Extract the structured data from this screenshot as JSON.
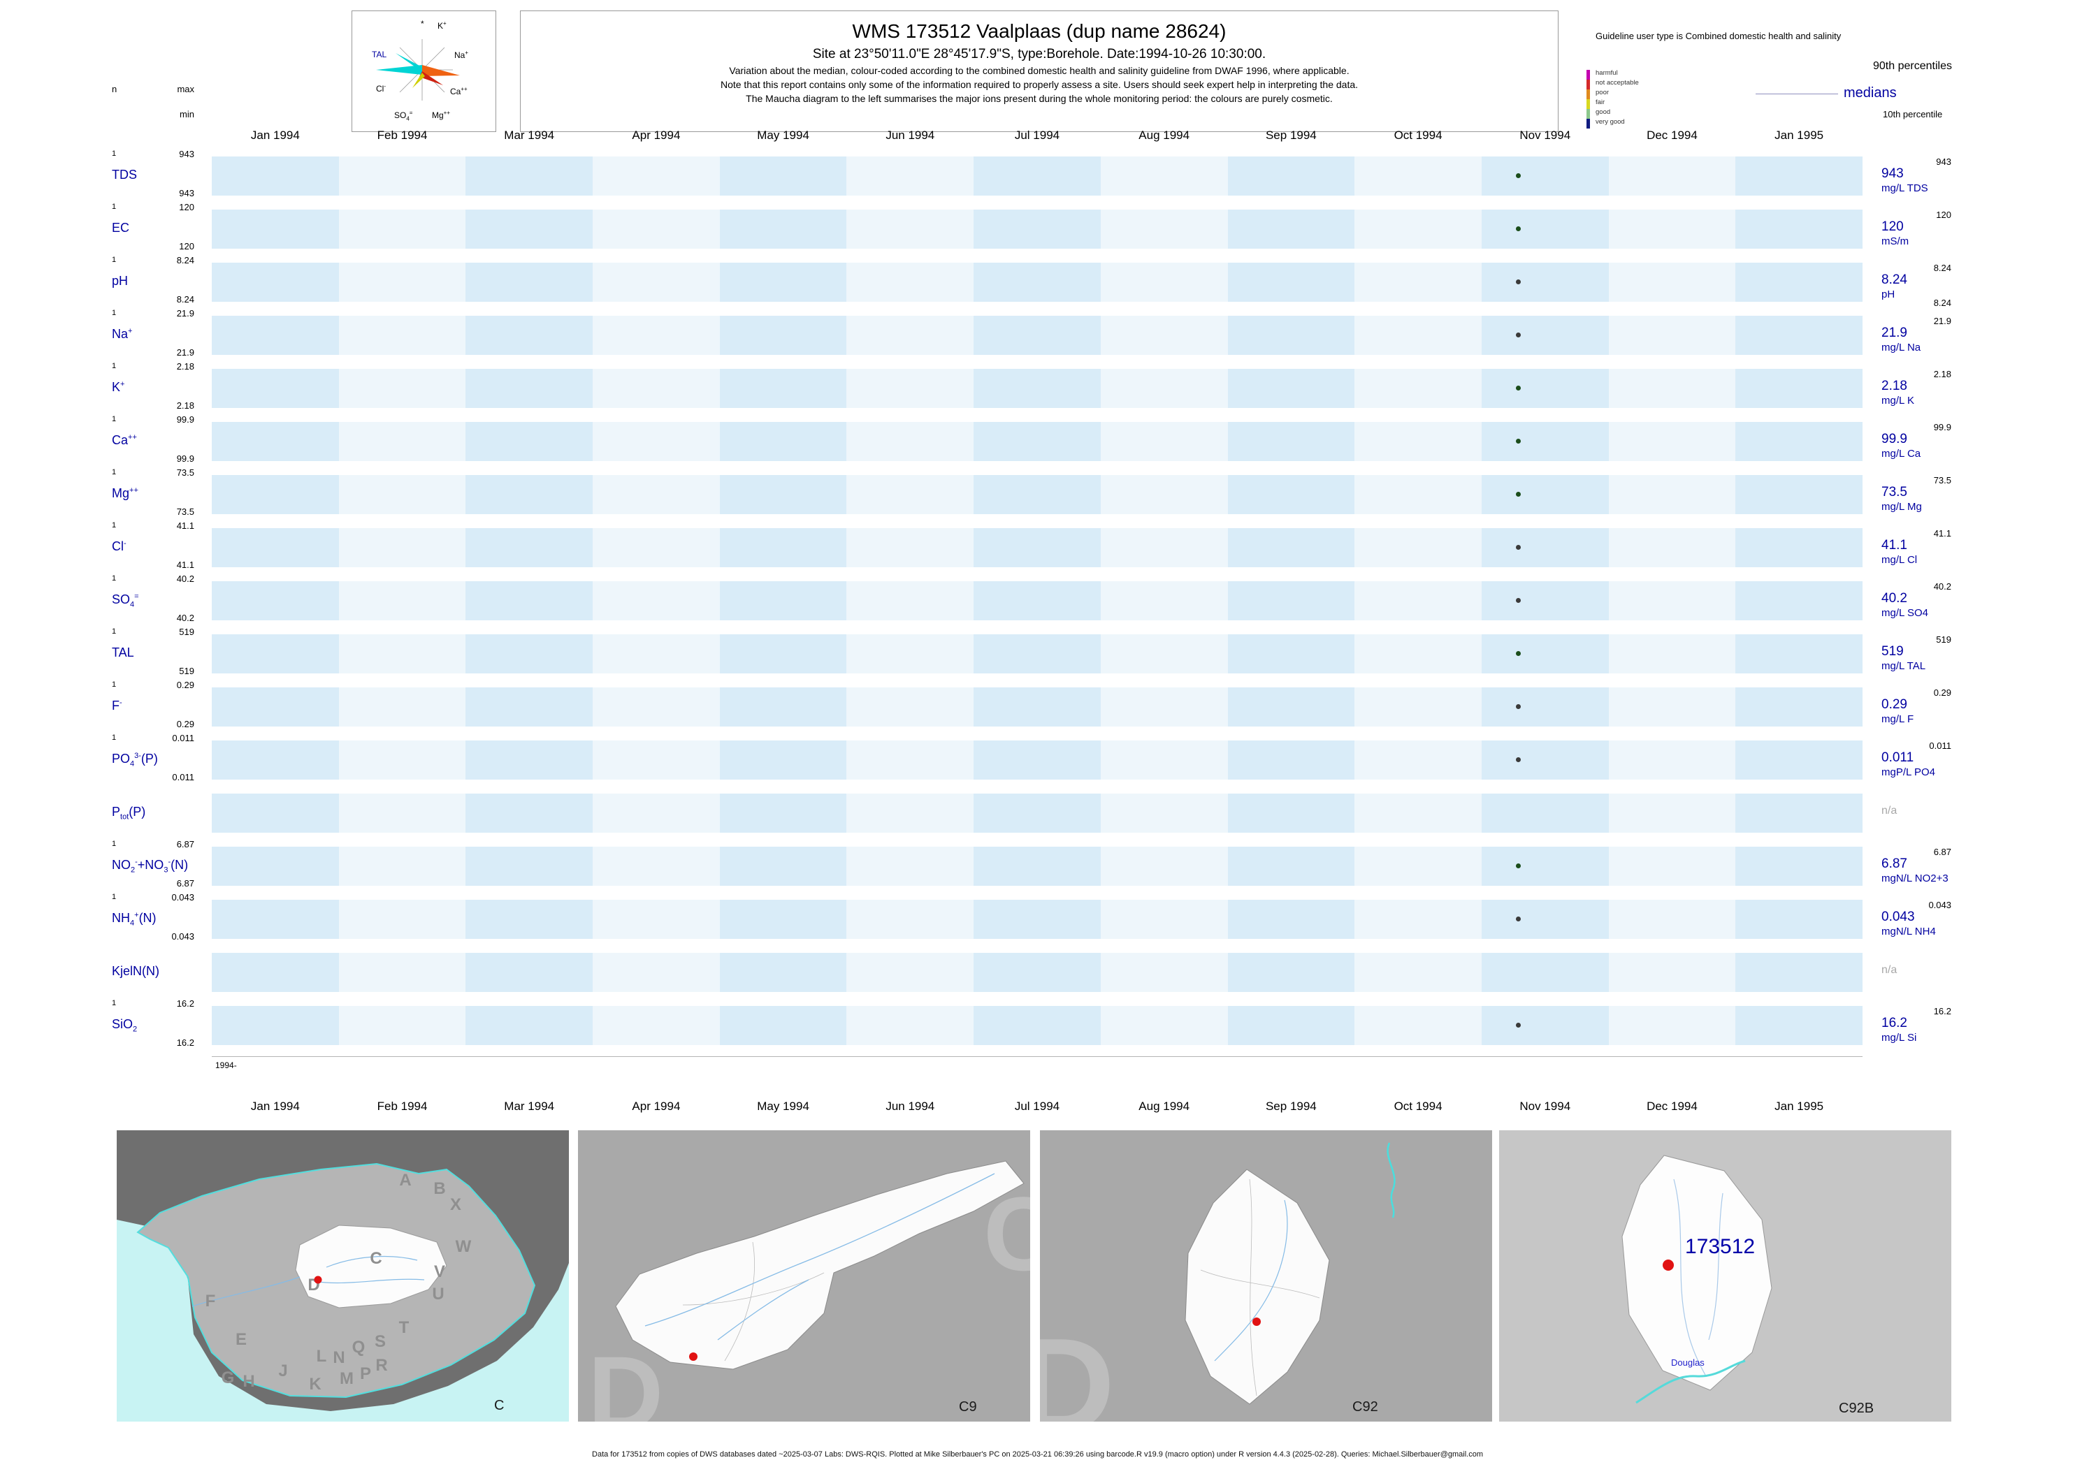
{
  "header": {
    "title": "WMS 173512  Vaalplaas (dup name 28624)",
    "subtitle": "Site at 23°50'11.0\"E 28°45'17.9\"S, type:Borehole. Date:1994-10-26 10:30:00.",
    "note1": "Variation about the median,  colour-coded according to the combined domestic health and salinity guideline from DWAF 1996, where applicable.",
    "note2": "Note that this report contains only some of the information required to properly assess a site. Users should seek expert help in interpreting the data.",
    "note3": "The Maucha diagram to the left summarises the major ions present during the whole monitoring period: the colours are purely cosmetic."
  },
  "maucha": {
    "star": "*",
    "k": "K<sup>+</sup>",
    "na": "Na<sup>+</sup>",
    "tal": "TAL",
    "cl": "Cl<sup>-</sup>",
    "ca": "Ca<sup>++</sup>",
    "so4": "SO<sub>4</sub><sup>=</sup>",
    "mg": "Mg<sup>++</sup>"
  },
  "legend": {
    "title": "Guideline user type is Combined domestic health and salinity",
    "scale": [
      {
        "label": "harmful",
        "color": "#c400b0"
      },
      {
        "label": "not acceptable",
        "color": "#d42a2a"
      },
      {
        "label": "poor",
        "color": "#e08a1e"
      },
      {
        "label": "fair",
        "color": "#d8d820"
      },
      {
        "label": "good",
        "color": "#8cc88c"
      },
      {
        "label": "very good",
        "color": "#101c80"
      }
    ],
    "p90_label": "90th percentiles",
    "median_label": "medians",
    "p10_label": "10th percentile"
  },
  "chart": {
    "col_n": "n",
    "col_max": "max",
    "col_min": "min",
    "origin_label": "1994-",
    "na_label": "n/a",
    "months": [
      "Jan 1994",
      "Feb 1994",
      "Mar 1994",
      "Apr 1994",
      "May 1994",
      "Jun 1994",
      "Jul 1994",
      "Aug 1994",
      "Sep 1994",
      "Oct 1994",
      "Nov 1994",
      "Dec 1994",
      "Jan 1995"
    ],
    "rows": [
      {
        "id": "tds",
        "label_html": "TDS",
        "n": "1",
        "max": "943",
        "min": "943",
        "p90": "943",
        "median": "943",
        "unit": "mg/L TDS",
        "dot_color": "#1b4d1b"
      },
      {
        "id": "ec",
        "label_html": "EC",
        "n": "1",
        "max": "120",
        "min": "120",
        "p90": "120",
        "median": "120",
        "unit": "mS/m",
        "dot_color": "#1b4d1b"
      },
      {
        "id": "ph",
        "label_html": "pH",
        "n": "1",
        "max": "8.24",
        "min": "8.24",
        "p90": "8.24",
        "median": "8.24",
        "p10": "8.24",
        "unit": "pH",
        "dot_color": "#3a3a3a"
      },
      {
        "id": "na",
        "label_html": "Na<sup>+</sup>",
        "n": "1",
        "max": "21.9",
        "min": "21.9",
        "p90": "21.9",
        "median": "21.9",
        "unit": "mg/L Na",
        "dot_color": "#3a3a3a"
      },
      {
        "id": "k",
        "label_html": "K<sup>+</sup>",
        "n": "1",
        "max": "2.18",
        "min": "2.18",
        "p90": "2.18",
        "median": "2.18",
        "unit": "mg/L K",
        "dot_color": "#1b4d1b"
      },
      {
        "id": "ca",
        "label_html": "Ca<sup>++</sup>",
        "n": "1",
        "max": "99.9",
        "min": "99.9",
        "p90": "99.9",
        "median": "99.9",
        "unit": "mg/L Ca",
        "dot_color": "#1b4d1b"
      },
      {
        "id": "mg",
        "label_html": "Mg<sup>++</sup>",
        "n": "1",
        "max": "73.5",
        "min": "73.5",
        "p90": "73.5",
        "median": "73.5",
        "unit": "mg/L Mg",
        "dot_color": "#1b4d1b"
      },
      {
        "id": "cl",
        "label_html": "Cl<sup>-</sup>",
        "n": "1",
        "max": "41.1",
        "min": "41.1",
        "p90": "41.1",
        "median": "41.1",
        "unit": "mg/L Cl",
        "dot_color": "#3a3a3a"
      },
      {
        "id": "so4",
        "label_html": "SO<sub>4</sub><sup>=</sup>",
        "n": "1",
        "max": "40.2",
        "min": "40.2",
        "p90": "40.2",
        "median": "40.2",
        "unit": "mg/L SO4",
        "dot_color": "#3a3a3a"
      },
      {
        "id": "tal",
        "label_html": "TAL",
        "n": "1",
        "max": "519",
        "min": "519",
        "p90": "519",
        "median": "519",
        "unit": "mg/L TAL",
        "dot_color": "#1b4d1b"
      },
      {
        "id": "f",
        "label_html": "F<sup>-</sup>",
        "n": "1",
        "max": "0.29",
        "min": "0.29",
        "p90": "0.29",
        "median": "0.29",
        "unit": "mg/L F",
        "dot_color": "#3a3a3a"
      },
      {
        "id": "po4",
        "label_html": "PO<sub>4</sub><sup>3-</sup>(P)",
        "n": "1",
        "max": "0.011",
        "min": "0.011",
        "p90": "0.011",
        "median": "0.011",
        "unit": "mgP/L PO4",
        "dot_color": "#3a3a3a"
      },
      {
        "id": "ptot",
        "label_html": "P<sub>tot</sub>(P)",
        "na": true
      },
      {
        "id": "no2no3",
        "label_html": "NO<sub>2</sub><sup>-</sup>+NO<sub>3</sub><sup>-</sup>(N)",
        "n": "1",
        "max": "6.87",
        "min": "6.87",
        "p90": "6.87",
        "median": "6.87",
        "unit": "mgN/L NO2+3",
        "dot_color": "#1b4d1b"
      },
      {
        "id": "nh4",
        "label_html": "NH<sub>4</sub><sup>+</sup>(N)",
        "n": "1",
        "max": "0.043",
        "min": "0.043",
        "p90": "0.043",
        "median": "0.043",
        "unit": "mgN/L NH4",
        "dot_color": "#3a3a3a"
      },
      {
        "id": "kjeln",
        "label_html": "KjelN(N)",
        "na": true
      },
      {
        "id": "sio2",
        "label_html": "SiO<sub>2</sub>",
        "n": "1",
        "max": "16.2",
        "min": "16.2",
        "p90": "16.2",
        "median": "16.2",
        "unit": "mg/L Si",
        "dot_color": "#3a3a3a"
      }
    ]
  },
  "chart_data": {
    "type": "scatter",
    "title": "WMS 173512 Vaalplaas (dup name 28624)",
    "x_axis": {
      "start": "Jan 1994",
      "end": "Jan 1995"
    },
    "sample_date": "1994-10-26 10:30:00",
    "series": [
      {
        "name": "TDS",
        "unit": "mg/L",
        "n": 1,
        "points": [
          {
            "x": "1994-10-26",
            "y": 943
          }
        ],
        "min": 943,
        "max": 943,
        "median": 943,
        "p90": 943
      },
      {
        "name": "EC",
        "unit": "mS/m",
        "n": 1,
        "points": [
          {
            "x": "1994-10-26",
            "y": 120
          }
        ],
        "min": 120,
        "max": 120,
        "median": 120,
        "p90": 120
      },
      {
        "name": "pH",
        "unit": "pH",
        "n": 1,
        "points": [
          {
            "x": "1994-10-26",
            "y": 8.24
          }
        ],
        "min": 8.24,
        "max": 8.24,
        "median": 8.24,
        "p90": 8.24,
        "p10": 8.24
      },
      {
        "name": "Na",
        "unit": "mg/L",
        "n": 1,
        "points": [
          {
            "x": "1994-10-26",
            "y": 21.9
          }
        ],
        "min": 21.9,
        "max": 21.9,
        "median": 21.9,
        "p90": 21.9
      },
      {
        "name": "K",
        "unit": "mg/L",
        "n": 1,
        "points": [
          {
            "x": "1994-10-26",
            "y": 2.18
          }
        ],
        "min": 2.18,
        "max": 2.18,
        "median": 2.18,
        "p90": 2.18
      },
      {
        "name": "Ca",
        "unit": "mg/L",
        "n": 1,
        "points": [
          {
            "x": "1994-10-26",
            "y": 99.9
          }
        ],
        "min": 99.9,
        "max": 99.9,
        "median": 99.9,
        "p90": 99.9
      },
      {
        "name": "Mg",
        "unit": "mg/L",
        "n": 1,
        "points": [
          {
            "x": "1994-10-26",
            "y": 73.5
          }
        ],
        "min": 73.5,
        "max": 73.5,
        "median": 73.5,
        "p90": 73.5
      },
      {
        "name": "Cl",
        "unit": "mg/L",
        "n": 1,
        "points": [
          {
            "x": "1994-10-26",
            "y": 41.1
          }
        ],
        "min": 41.1,
        "max": 41.1,
        "median": 41.1,
        "p90": 41.1
      },
      {
        "name": "SO4",
        "unit": "mg/L",
        "n": 1,
        "points": [
          {
            "x": "1994-10-26",
            "y": 40.2
          }
        ],
        "min": 40.2,
        "max": 40.2,
        "median": 40.2,
        "p90": 40.2
      },
      {
        "name": "TAL",
        "unit": "mg/L",
        "n": 1,
        "points": [
          {
            "x": "1994-10-26",
            "y": 519
          }
        ],
        "min": 519,
        "max": 519,
        "median": 519,
        "p90": 519
      },
      {
        "name": "F",
        "unit": "mg/L",
        "n": 1,
        "points": [
          {
            "x": "1994-10-26",
            "y": 0.29
          }
        ],
        "min": 0.29,
        "max": 0.29,
        "median": 0.29,
        "p90": 0.29
      },
      {
        "name": "PO4(P)",
        "unit": "mgP/L",
        "n": 1,
        "points": [
          {
            "x": "1994-10-26",
            "y": 0.011
          }
        ],
        "min": 0.011,
        "max": 0.011,
        "median": 0.011,
        "p90": 0.011
      },
      {
        "name": "Ptot(P)",
        "unit": "",
        "n": 0,
        "points": []
      },
      {
        "name": "NO2+NO3(N)",
        "unit": "mgN/L",
        "n": 1,
        "points": [
          {
            "x": "1994-10-26",
            "y": 6.87
          }
        ],
        "min": 6.87,
        "max": 6.87,
        "median": 6.87,
        "p90": 6.87
      },
      {
        "name": "NH4(N)",
        "unit": "mgN/L",
        "n": 1,
        "points": [
          {
            "x": "1994-10-26",
            "y": 0.043
          }
        ],
        "min": 0.043,
        "max": 0.043,
        "median": 0.043,
        "p90": 0.043
      },
      {
        "name": "KjelN(N)",
        "unit": "",
        "n": 0,
        "points": []
      },
      {
        "name": "SiO2",
        "unit": "mg/L",
        "n": 1,
        "points": [
          {
            "x": "1994-10-26",
            "y": 16.2
          }
        ],
        "min": 16.2,
        "max": 16.2,
        "median": 16.2,
        "p90": 16.2
      }
    ]
  },
  "maps": {
    "panel1": {
      "label": "C",
      "letters": [
        "A",
        "B",
        "X",
        "W",
        "C",
        "V",
        "U",
        "D",
        "F",
        "E",
        "Q",
        "S",
        "T",
        "R",
        "L",
        "N",
        "G",
        "H",
        "J",
        "K",
        "M",
        "P"
      ]
    },
    "panel2": {
      "label": "C9",
      "big_letters": [
        "D",
        "C"
      ]
    },
    "panel3": {
      "label": "C92",
      "big_letters": [
        "D"
      ]
    },
    "panel4": {
      "label": "C92B",
      "site_label": "173512",
      "town_label": "Douglas"
    }
  },
  "footer": "Data for 173512 from copies of DWS databases dated ~2025-03-07 Labs: DWS-RQIS. Plotted at Mike Silberbauer's PC on 2025-03-21 06:39:26 using barcode.R v19.9 (macro option) under R version 4.4.3 (2025-02-28). Queries: Michael.Silberbauer@gmail.com"
}
